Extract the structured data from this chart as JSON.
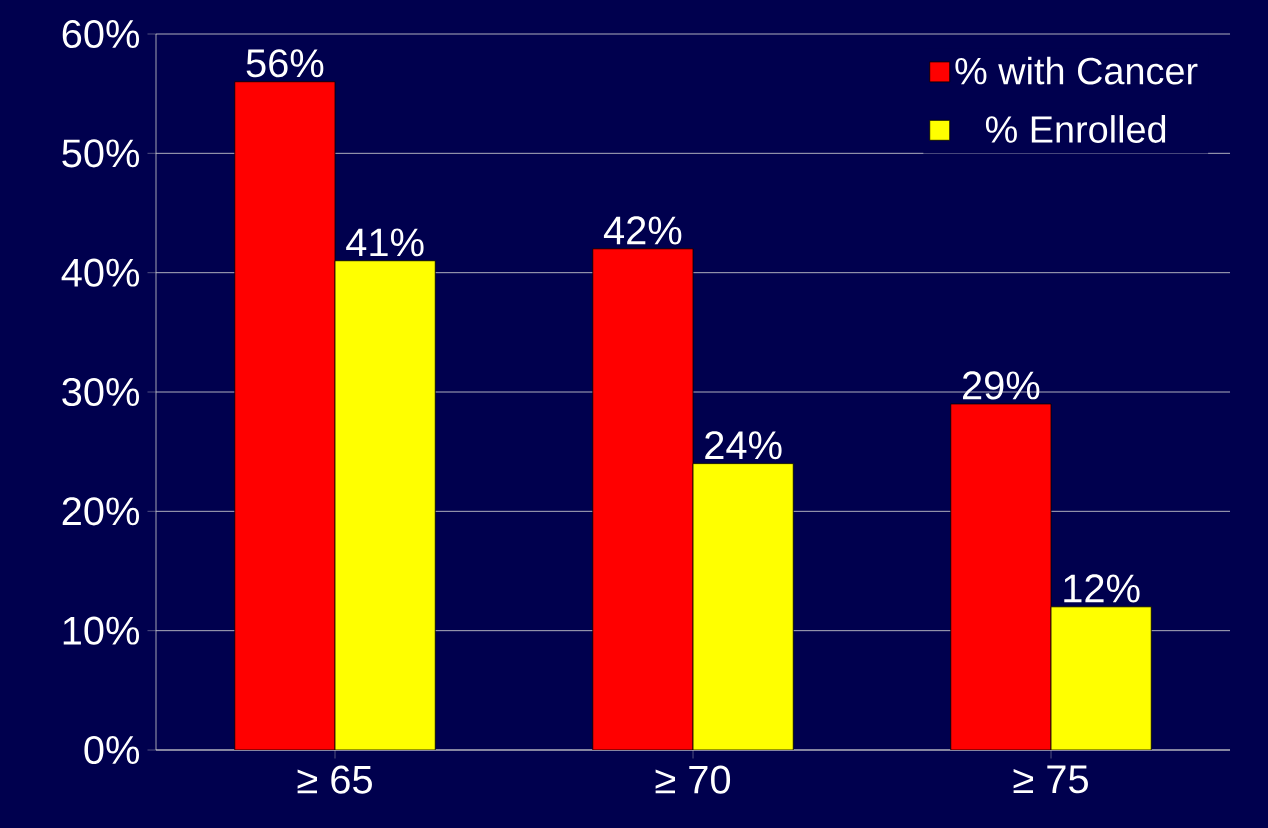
{
  "chart_data": {
    "type": "bar",
    "categories": [
      "≥ 65",
      "≥ 70",
      "≥ 75"
    ],
    "series": [
      {
        "name": "% with Cancer",
        "color": "#ff0000",
        "values": [
          56,
          42,
          29
        ],
        "value_labels": [
          "56%",
          "42%",
          "29%"
        ]
      },
      {
        "name": "% Enrolled",
        "color": "#ffff00",
        "values": [
          41,
          24,
          12
        ],
        "value_labels": [
          "41%",
          "24%",
          "12%"
        ]
      }
    ],
    "ylim": [
      0,
      60
    ],
    "yticks": [
      {
        "value": 0,
        "label": "0%"
      },
      {
        "value": 10,
        "label": "10%"
      },
      {
        "value": 20,
        "label": "20%"
      },
      {
        "value": 30,
        "label": "30%"
      },
      {
        "value": 40,
        "label": "40%"
      },
      {
        "value": 50,
        "label": "50%"
      },
      {
        "value": 60,
        "label": "60%"
      }
    ],
    "grid": "y",
    "legend": "top right"
  }
}
